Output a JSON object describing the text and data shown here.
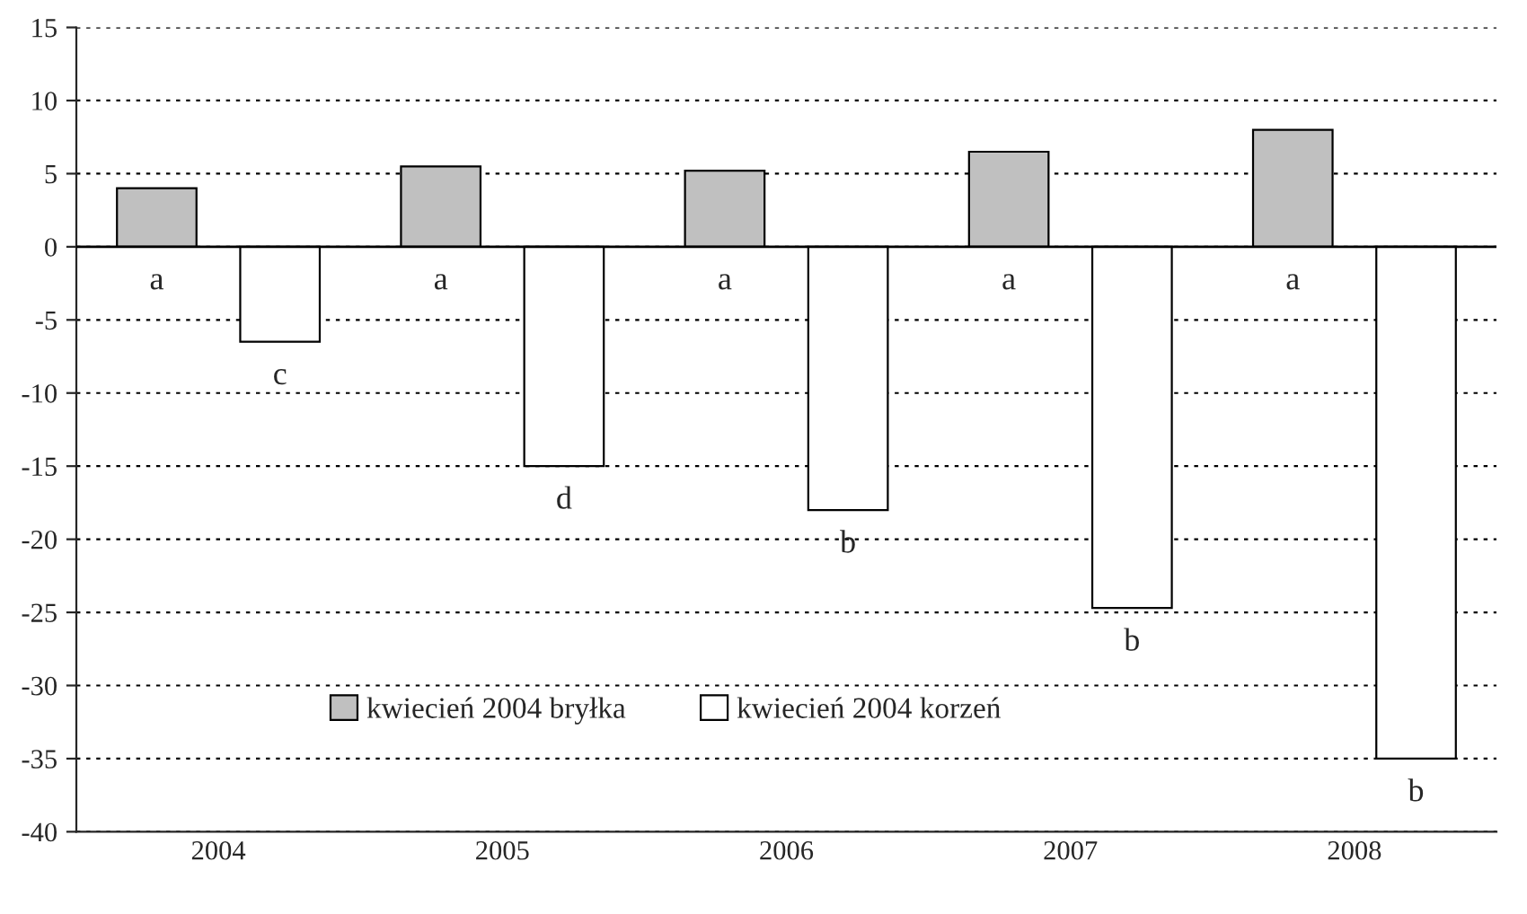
{
  "chart_data": {
    "type": "bar",
    "categories": [
      "2004",
      "2005",
      "2006",
      "2007",
      "2008"
    ],
    "series": [
      {
        "name": "kwiecień 2004 bryłka",
        "color": "#c0c0c0",
        "values": [
          4,
          5.5,
          5.2,
          6.5,
          8
        ],
        "value_labels": [
          "a",
          "a",
          "a",
          "a",
          "a"
        ]
      },
      {
        "name": "kwiecień 2004 korzeń",
        "color": "#ffffff",
        "values": [
          -6.5,
          -15,
          -18,
          -24.7,
          -35
        ],
        "value_labels": [
          "c",
          "d",
          "b",
          "b",
          "b"
        ]
      }
    ],
    "ylim": [
      -40,
      15
    ],
    "yticks": [
      -40,
      -35,
      -30,
      -25,
      -20,
      -15,
      -10,
      -5,
      0,
      5,
      10,
      15
    ],
    "grid": "y",
    "legend": "bottom left"
  }
}
